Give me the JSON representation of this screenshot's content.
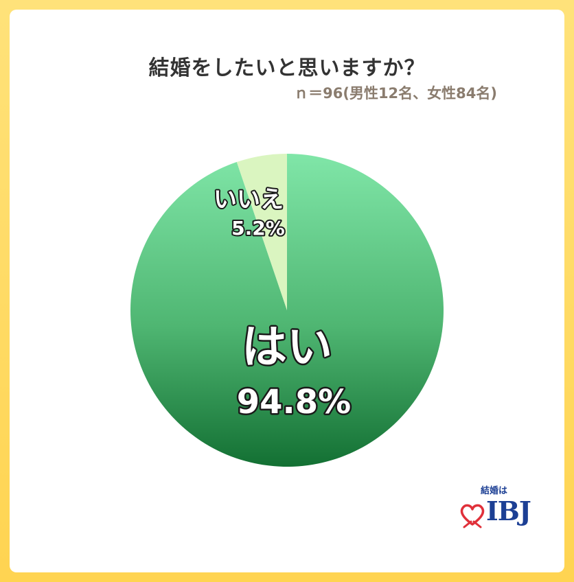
{
  "chart_data": {
    "type": "pie",
    "title": "結婚をしたいと思いますか？",
    "subtitle": "ｎ＝96(男性12名、女性84名)",
    "slices": [
      {
        "label": "はい",
        "value": 94.8,
        "value_label": "94.8%",
        "color": "#2e8f4e"
      },
      {
        "label": "いいえ",
        "value": 5.2,
        "value_label": "5.2%",
        "color": "#daf5c0"
      }
    ]
  },
  "brand": {
    "tagline": "結婚は",
    "name": "IBJ",
    "color": "#1c3f94",
    "heart_color": "#e0303a"
  }
}
